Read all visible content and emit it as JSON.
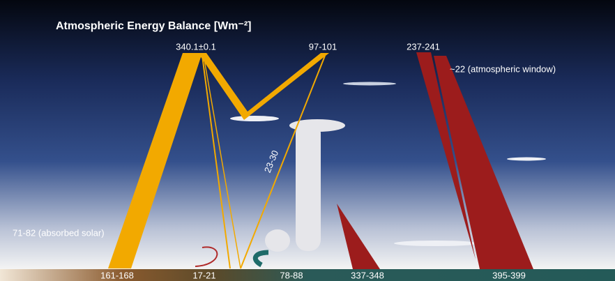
{
  "header": {
    "title": "Atmospheric Energy Balance [Wm⁻²]"
  },
  "labels": {
    "incoming_solar": "340.1±0.1",
    "reflected_solar": "97-101",
    "outgoing_longwave": "237-241",
    "atmospheric_window": "~22 (atmospheric window)",
    "reflected_surface": "23-30",
    "absorbed_solar": "71-82 (absorbed solar)"
  },
  "surface_labels": [
    "161-168",
    "17-21",
    "78-88",
    "337-348",
    "395-399"
  ]
}
